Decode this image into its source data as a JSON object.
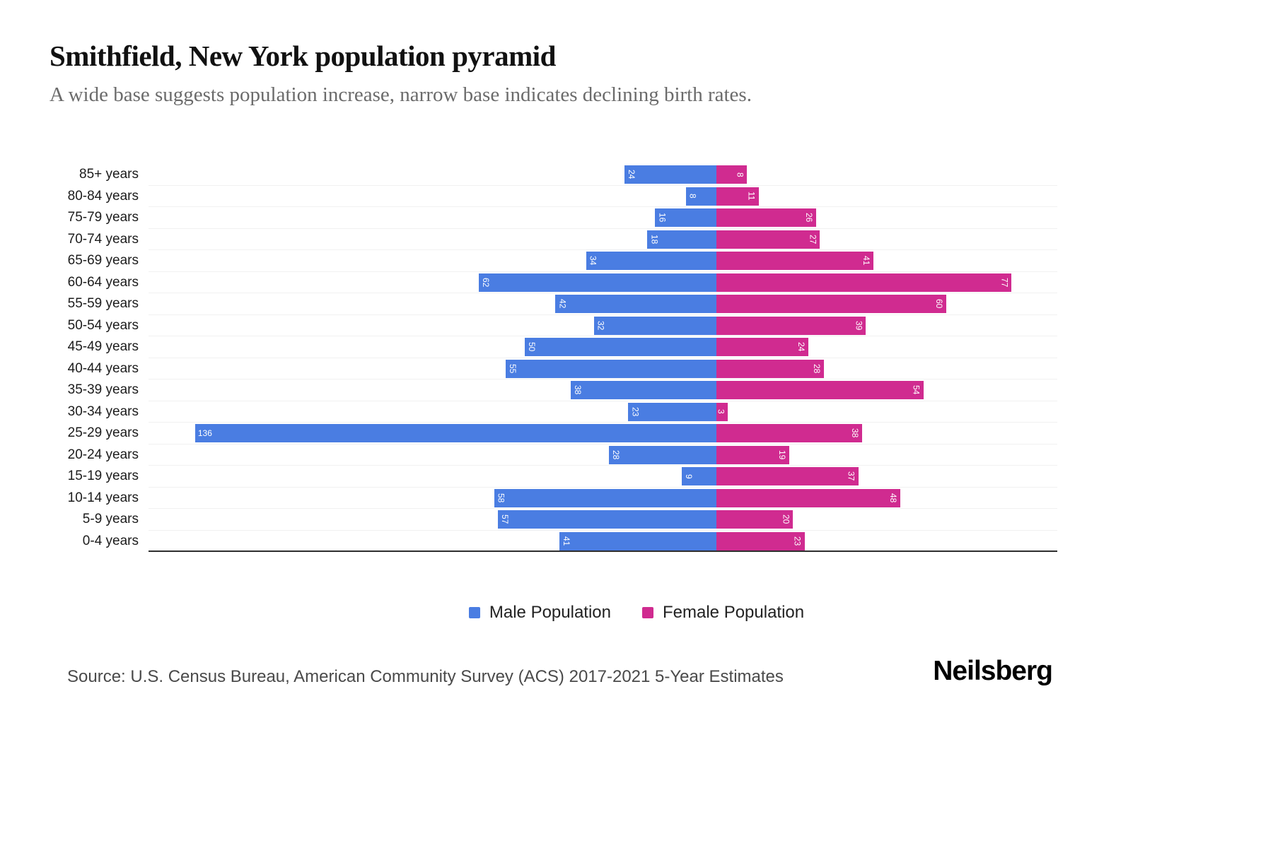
{
  "header": {
    "title": "Smithfield, New York population pyramid",
    "subtitle": "A wide base suggests population increase, narrow base indicates declining birth rates."
  },
  "chart_data": {
    "type": "bar",
    "variant": "population-pyramid",
    "orientation": "horizontal",
    "categories": [
      "85+ years",
      "80-84 years",
      "75-79 years",
      "70-74 years",
      "65-69 years",
      "60-64 years",
      "55-59 years",
      "50-54 years",
      "45-49 years",
      "40-44 years",
      "35-39 years",
      "30-34 years",
      "25-29 years",
      "20-24 years",
      "15-19 years",
      "10-14 years",
      "5-9 years",
      "0-4 years"
    ],
    "series": [
      {
        "name": "Male Population",
        "side": "left",
        "color": "#4a7de2",
        "values": [
          24,
          8,
          16,
          18,
          34,
          62,
          42,
          32,
          50,
          55,
          38,
          23,
          136,
          28,
          9,
          58,
          57,
          41
        ]
      },
      {
        "name": "Female Population",
        "side": "right",
        "color": "#d02b90",
        "values": [
          8,
          11,
          26,
          27,
          41,
          77,
          60,
          39,
          24,
          28,
          54,
          3,
          38,
          19,
          37,
          48,
          20,
          23
        ]
      }
    ],
    "value_axis_max_per_side": 140,
    "grid": "horizontal-light",
    "legend_position": "bottom-center",
    "bar_value_labels": "inside-outer-end-white"
  },
  "footer": {
    "source": "Source: U.S. Census Bureau, American Community Survey (ACS) 2017-2021 5-Year Estimates",
    "brand": "Neilsberg"
  }
}
